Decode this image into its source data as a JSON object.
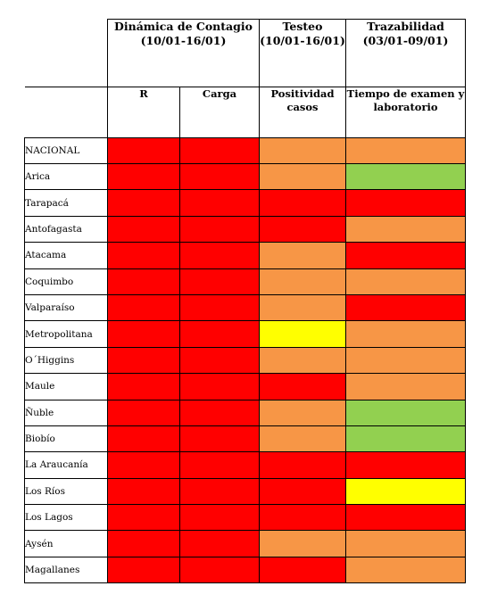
{
  "header": {
    "group1_title": "Dinámica de Contagio (10/01-16/01)",
    "group2_title": "Testeo (10/01-16/01)",
    "group3_title": "Trazabilidad (03/01-09/01)",
    "col_r": "R",
    "col_carga": "Carga",
    "col_positividad": "Positividad casos",
    "col_tiempo": "Tiempo de examen y laboratorio"
  },
  "colors": {
    "red": "#ff0000",
    "orange": "#f79646",
    "green": "#92d050",
    "yellow": "#ffff00"
  },
  "rows": [
    {
      "region": "NACIONAL",
      "r": "red",
      "carga": "red",
      "positividad": "orange",
      "tiempo": "orange"
    },
    {
      "region": "Arica",
      "r": "red",
      "carga": "red",
      "positividad": "orange",
      "tiempo": "green"
    },
    {
      "region": "Tarapacá",
      "r": "red",
      "carga": "red",
      "positividad": "red",
      "tiempo": "red"
    },
    {
      "region": "Antofagasta",
      "r": "red",
      "carga": "red",
      "positividad": "red",
      "tiempo": "orange"
    },
    {
      "region": "Atacama",
      "r": "red",
      "carga": "red",
      "positividad": "orange",
      "tiempo": "red"
    },
    {
      "region": "Coquimbo",
      "r": "red",
      "carga": "red",
      "positividad": "orange",
      "tiempo": "orange"
    },
    {
      "region": "Valparaíso",
      "r": "red",
      "carga": "red",
      "positividad": "orange",
      "tiempo": "red"
    },
    {
      "region": "Metropolitana",
      "r": "red",
      "carga": "red",
      "positividad": "yellow",
      "tiempo": "orange"
    },
    {
      "region": "O´Higgins",
      "r": "red",
      "carga": "red",
      "positividad": "orange",
      "tiempo": "orange"
    },
    {
      "region": "Maule",
      "r": "red",
      "carga": "red",
      "positividad": "red",
      "tiempo": "orange"
    },
    {
      "region": "Ñuble",
      "r": "red",
      "carga": "red",
      "positividad": "orange",
      "tiempo": "green"
    },
    {
      "region": "Biobío",
      "r": "red",
      "carga": "red",
      "positividad": "orange",
      "tiempo": "green"
    },
    {
      "region": "La Araucanía",
      "r": "red",
      "carga": "red",
      "positividad": "red",
      "tiempo": "red"
    },
    {
      "region": "Los Ríos",
      "r": "red",
      "carga": "red",
      "positividad": "red",
      "tiempo": "yellow"
    },
    {
      "region": "Los Lagos",
      "r": "red",
      "carga": "red",
      "positividad": "red",
      "tiempo": "red"
    },
    {
      "region": "Aysén",
      "r": "red",
      "carga": "red",
      "positividad": "orange",
      "tiempo": "orange"
    },
    {
      "region": "Magallanes",
      "r": "red",
      "carga": "red",
      "positividad": "red",
      "tiempo": "orange"
    }
  ]
}
